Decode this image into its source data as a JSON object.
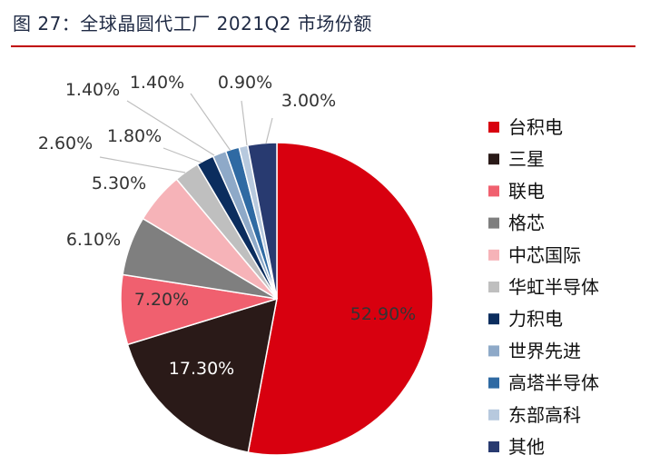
{
  "title": "图 27：全球晶圆代工厂 2021Q2 市场份额",
  "chart_data": {
    "type": "pie",
    "slices": [
      {
        "name": "台积电",
        "value": 52.9,
        "label": "52.90%",
        "color": "#d8000f"
      },
      {
        "name": "三星",
        "value": 17.3,
        "label": "17.30%",
        "color": "#2a1a18"
      },
      {
        "name": "联电",
        "value": 7.2,
        "label": "7.20%",
        "color": "#f0606f"
      },
      {
        "name": "格芯",
        "value": 6.1,
        "label": "6.10%",
        "color": "#7f7f7f"
      },
      {
        "name": "中芯国际",
        "value": 5.3,
        "label": "5.30%",
        "color": "#f6b3b8"
      },
      {
        "name": "华虹半导体",
        "value": 2.6,
        "label": "2.60%",
        "color": "#bfbfbf"
      },
      {
        "name": "力积电",
        "value": 1.8,
        "label": "1.80%",
        "color": "#0b2d5e"
      },
      {
        "name": "世界先进",
        "value": 1.4,
        "label": "1.40%",
        "color": "#8ea9c8"
      },
      {
        "name": "高塔半导体",
        "value": 1.4,
        "label": "1.40%",
        "color": "#2f6aa3"
      },
      {
        "name": "东部高科",
        "value": 0.9,
        "label": "0.90%",
        "color": "#b7c9de"
      },
      {
        "name": "其他",
        "value": 3.0,
        "label": "3.00%",
        "color": "#283a70"
      }
    ],
    "legend_position": "right"
  }
}
